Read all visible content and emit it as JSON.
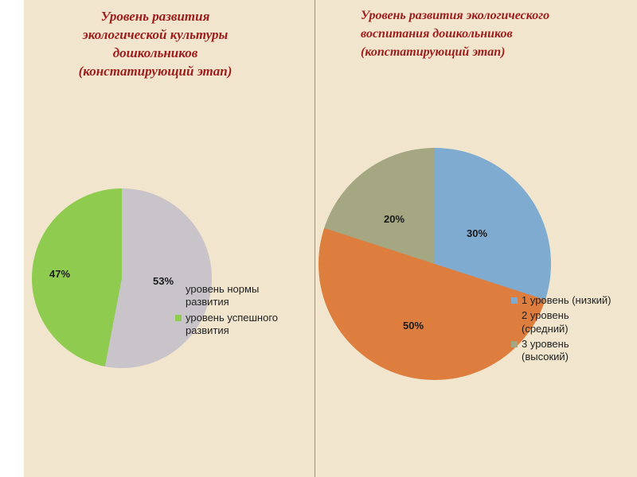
{
  "colors": {
    "slide_background": "#f1e6cd",
    "title_color": "#9e1b1b",
    "divider_color": "#9a968c"
  },
  "chart_data": [
    {
      "type": "pie",
      "title": "Уровень развития\nэкологической культуры\nдошкольников\n(констатирующий этап)",
      "legend_position": "right",
      "slices": [
        {
          "label": "уровень нормы\nразвития",
          "value": 53,
          "pct": "53%",
          "color": "#c8c4ca"
        },
        {
          "label": "уровень успешного\nразвития",
          "value": 47,
          "pct": "47%",
          "color": "#8ecb4e"
        }
      ]
    },
    {
      "type": "pie",
      "title": "Уровень развития экологического\nвоспитания дошкольников\n(копстатирующий этап)",
      "legend_position": "right",
      "slices": [
        {
          "label": "1 уровень (низкий)",
          "value": 30,
          "pct": "30%",
          "color": "#7fabd1"
        },
        {
          "label": "2 уровень\n(средний)",
          "value": 50,
          "pct": "50%",
          "color": "#dd7e3e"
        },
        {
          "label": "3 уровень\n(высокий)",
          "value": 20,
          "pct": "20%",
          "color": "#a5a682"
        }
      ]
    }
  ]
}
